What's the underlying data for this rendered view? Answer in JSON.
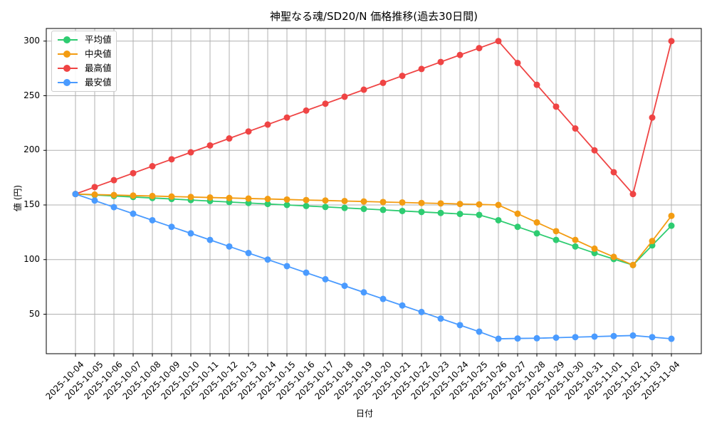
{
  "chart_data": {
    "type": "line",
    "title": "神聖なる魂/SD20/N 価格推移(過去30日間)",
    "xlabel": "日付",
    "ylabel": "値 (円)",
    "ylim": [
      15,
      313
    ],
    "yticks": [
      50,
      100,
      150,
      200,
      250,
      300
    ],
    "grid": true,
    "legend_position": "upper left",
    "x": [
      "2025-10-04",
      "2025-10-05",
      "2025-10-06",
      "2025-10-07",
      "2025-10-08",
      "2025-10-09",
      "2025-10-10",
      "2025-10-11",
      "2025-10-12",
      "2025-10-13",
      "2025-10-14",
      "2025-10-15",
      "2025-10-16",
      "2025-10-17",
      "2025-10-18",
      "2025-10-19",
      "2025-10-20",
      "2025-10-21",
      "2025-10-22",
      "2025-10-23",
      "2025-10-24",
      "2025-10-25",
      "2025-10-26",
      "2025-10-27",
      "2025-10-28",
      "2025-10-29",
      "2025-10-30",
      "2025-10-31",
      "2025-11-01",
      "2025-11-02",
      "2025-11-03",
      "2025-11-04"
    ],
    "series": [
      {
        "name": "平均値",
        "color": "#2ecc71",
        "values": [
          160,
          159.1,
          158.2,
          157.3,
          156.4,
          155.5,
          154.5,
          153.6,
          152.7,
          151.8,
          150.9,
          150,
          149.1,
          148.2,
          147.3,
          146.4,
          145.5,
          144.5,
          143.6,
          142.7,
          141.8,
          140.9,
          136,
          130,
          124,
          118,
          112,
          106,
          100.5,
          95,
          113,
          131
        ]
      },
      {
        "name": "中央値",
        "color": "#f39c12",
        "values": [
          160,
          159.5,
          159.1,
          158.6,
          158.2,
          157.7,
          157.3,
          156.8,
          156.4,
          155.9,
          155.5,
          155,
          154.5,
          154.1,
          153.6,
          153.2,
          152.7,
          152.3,
          151.8,
          151.4,
          150.9,
          150.5,
          150,
          142,
          134,
          126,
          118,
          110,
          102.5,
          95,
          117,
          140
        ]
      },
      {
        "name": "最高値",
        "color": "#ef4444",
        "values": [
          160,
          166.4,
          172.7,
          179.1,
          185.5,
          191.8,
          198.2,
          204.5,
          210.9,
          217.3,
          223.6,
          230,
          236.4,
          242.7,
          249.1,
          255.5,
          261.8,
          268.2,
          274.5,
          280.9,
          287.3,
          293.6,
          300,
          280,
          260,
          240,
          220,
          200,
          180,
          160,
          230,
          300
        ]
      },
      {
        "name": "最安値",
        "color": "#4a9bff",
        "values": [
          160,
          154,
          148,
          142,
          136,
          130,
          124,
          118,
          112,
          106,
          100,
          94,
          88,
          82,
          76,
          70,
          64,
          58,
          52,
          46,
          40,
          34,
          27.5,
          27.8,
          28,
          28.5,
          29,
          29.5,
          30,
          30.5,
          29,
          27.5
        ]
      }
    ]
  },
  "labels": {
    "title": "神聖なる魂/SD20/N 価格推移(過去30日間)",
    "xlabel": "日付",
    "ylabel": "値 (円)",
    "legend": [
      "平均値",
      "中央値",
      "最高値",
      "最安値"
    ]
  }
}
